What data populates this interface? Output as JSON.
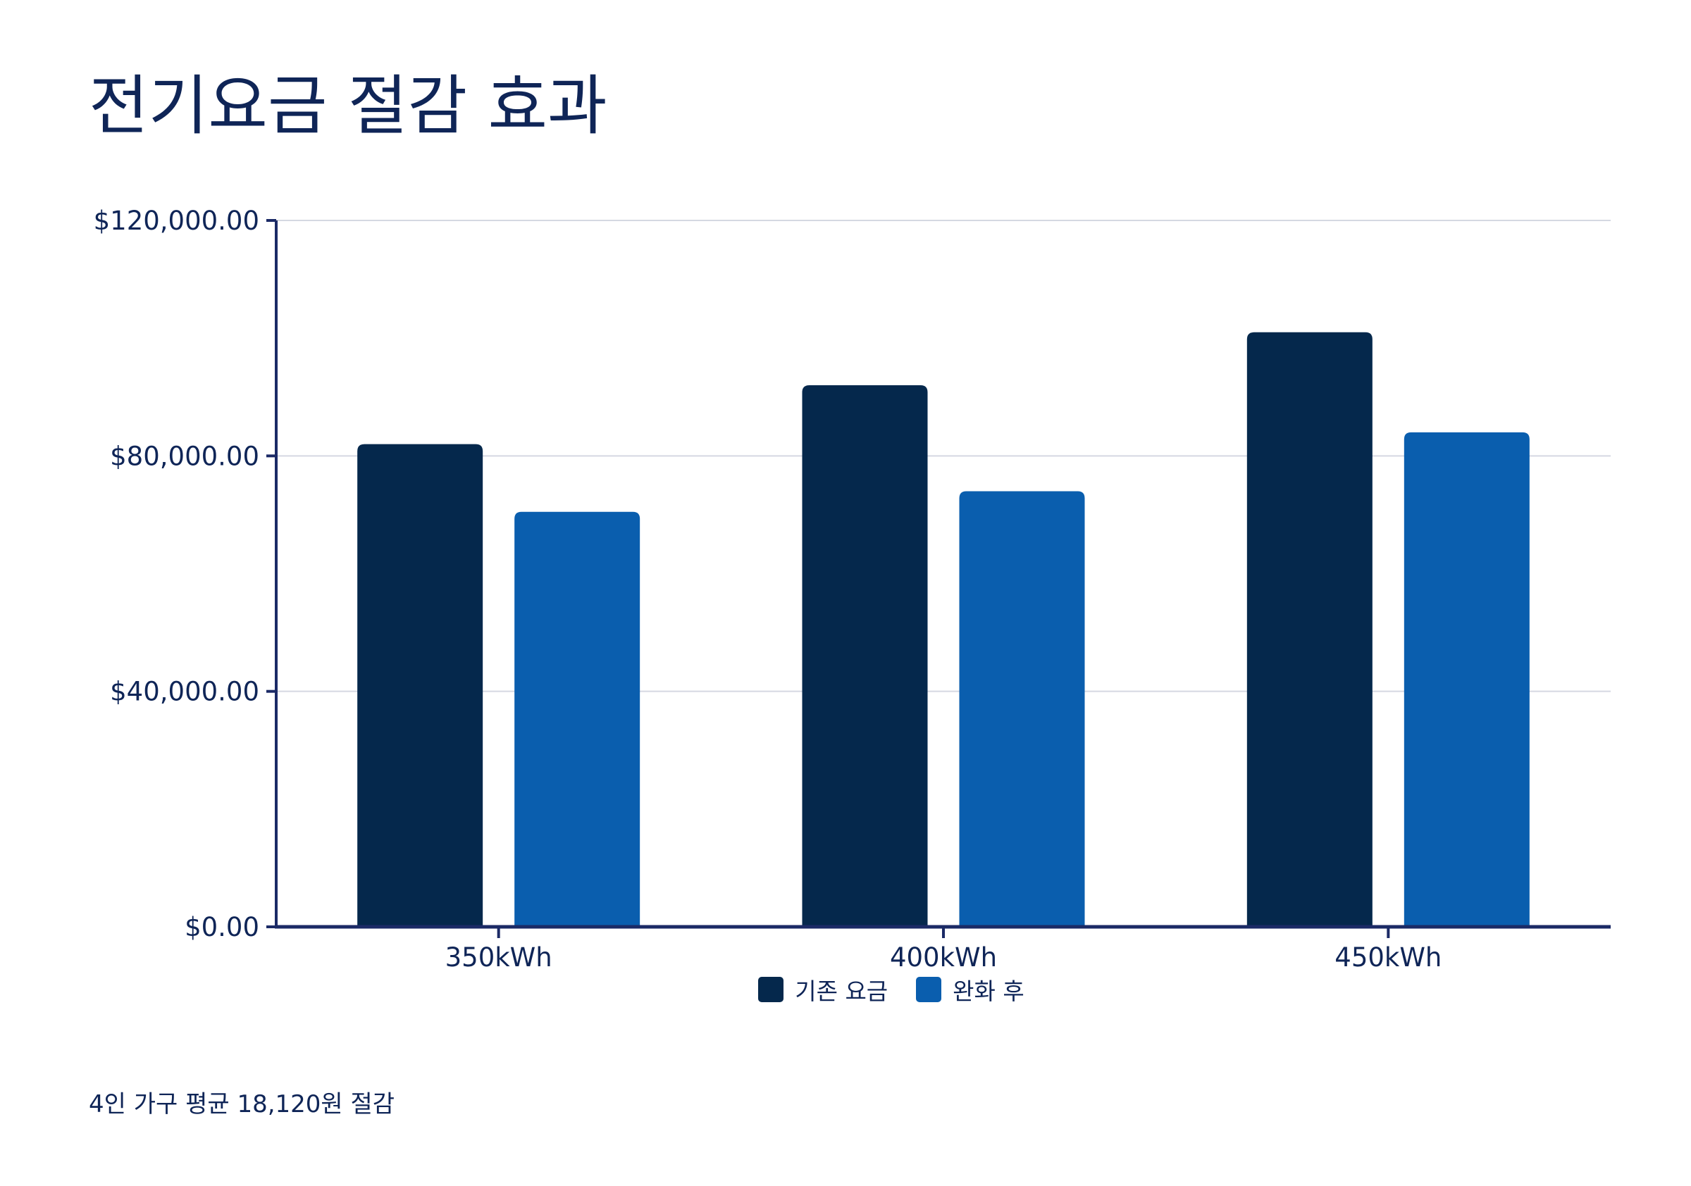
{
  "title": "전기요금 절감 효과",
  "footnote": "4인 가구 평균 18,120원 절감",
  "colors": {
    "text": "#0f2557",
    "axis": "#1b2a66",
    "grid": "#d5d8e2",
    "series_before": "#05284c",
    "series_after": "#0a5eae"
  },
  "chart_data": {
    "type": "bar",
    "title": "전기요금 절감 효과",
    "xlabel": "",
    "ylabel": "",
    "categories": [
      "350kWh",
      "400kWh",
      "450kWh"
    ],
    "series": [
      {
        "name": "기존 요금",
        "values": [
          82000,
          92000,
          101000
        ]
      },
      {
        "name": "완화 후",
        "values": [
          70500,
          74000,
          84000
        ]
      }
    ],
    "ylim": [
      0,
      120000
    ],
    "yticks": [
      0,
      40000,
      80000,
      120000
    ],
    "ytick_labels": [
      "$0.00",
      "$40,000.00",
      "$80,000.00",
      "$120,000.00"
    ],
    "grid": true,
    "legend": "bottom-center"
  }
}
